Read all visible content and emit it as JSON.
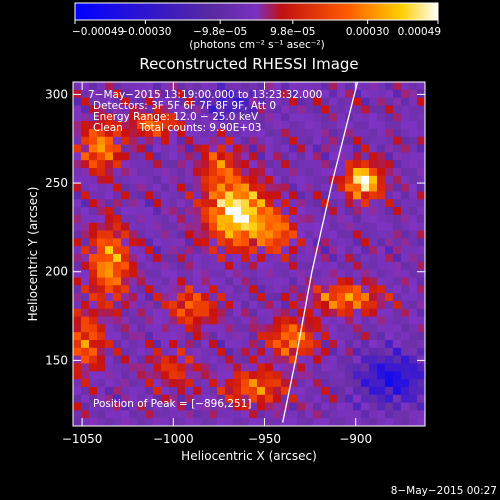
{
  "chart_data": {
    "type": "heatmap",
    "title": "Reconstructed RHESSI Image",
    "xlabel": "Heliocentric X (arcsec)",
    "ylabel": "Heliocentric Y (arcsec)",
    "xlim": [
      -1055,
      -862
    ],
    "ylim": [
      113,
      307
    ],
    "x_ticks": [
      -1050,
      -1000,
      -950,
      -900
    ],
    "y_ticks": [
      150,
      200,
      250,
      300
    ],
    "x_tick_labels": [
      "−1050",
      "−1000",
      "−950",
      "−900"
    ],
    "y_tick_labels": [
      "150",
      "200",
      "250",
      "300"
    ],
    "colorbar": {
      "range": [
        -0.00049,
        0.00049
      ],
      "tick_values": [
        -0.00049,
        -0.0003,
        -9.8e-05,
        9.8e-05,
        0.0003,
        0.00049
      ],
      "tick_labels": [
        "−0.00049",
        "−0.00030",
        "−9.8e−05",
        "9.8e−05",
        "0.00030",
        "0.00049"
      ],
      "units_label": "(photons cm⁻² s⁻¹ asec⁻²)",
      "colormap": [
        "#0000ff",
        "#6b2fa6",
        "#7f33c4",
        "#c81010",
        "#ff5500",
        "#ffcc00",
        "#ffffff"
      ]
    },
    "annotations": [
      "7−May−2015 13:19:00.000 to 13:23:32.000",
      "Detectors: 3F 5F 6F 7F 8F 9F, Att 0",
      "Energy Range: 12.0 − 25.0 keV",
      "Clean     Total counts: 9.90E+03"
    ],
    "peak_label": "Position of Peak = [−896,251]",
    "peak": [
      -896,
      251
    ],
    "limb_curve": [
      [
        -940,
        115
      ],
      [
        -933,
        150
      ],
      [
        -924,
        200
      ],
      [
        -913,
        250
      ],
      [
        -899,
        307
      ]
    ],
    "sources": [
      {
        "x": -965,
        "y": 233,
        "sx": 12,
        "sy": 13,
        "amp": 1.0
      },
      {
        "x": -975,
        "y": 260,
        "sx": 7,
        "sy": 9,
        "amp": 0.45
      },
      {
        "x": -943,
        "y": 222,
        "sx": 8,
        "sy": 8,
        "amp": 0.5
      },
      {
        "x": -896,
        "y": 251,
        "sx": 7,
        "sy": 7,
        "amp": 1.0
      },
      {
        "x": -1040,
        "y": 270,
        "sx": 8,
        "sy": 10,
        "amp": 0.65
      },
      {
        "x": -1035,
        "y": 205,
        "sx": 8,
        "sy": 15,
        "amp": 0.7
      },
      {
        "x": -1010,
        "y": 283,
        "sx": 10,
        "sy": 5,
        "amp": 0.55
      },
      {
        "x": -990,
        "y": 180,
        "sx": 10,
        "sy": 8,
        "amp": 0.5
      },
      {
        "x": -1048,
        "y": 160,
        "sx": 7,
        "sy": 12,
        "amp": 0.55
      },
      {
        "x": -905,
        "y": 185,
        "sx": 13,
        "sy": 6,
        "amp": 0.65
      },
      {
        "x": -935,
        "y": 162,
        "sx": 10,
        "sy": 8,
        "amp": 0.6
      },
      {
        "x": -955,
        "y": 135,
        "sx": 12,
        "sy": 7,
        "amp": 0.55
      },
      {
        "x": -1000,
        "y": 145,
        "sx": 10,
        "sy": 8,
        "amp": 0.35
      },
      {
        "x": -880,
        "y": 140,
        "sx": 14,
        "sy": 10,
        "amp": -0.6
      },
      {
        "x": -970,
        "y": 295,
        "sx": 10,
        "sy": 6,
        "amp": -0.4
      }
    ]
  },
  "footer": {
    "date": "8−May−2015 00:27"
  }
}
